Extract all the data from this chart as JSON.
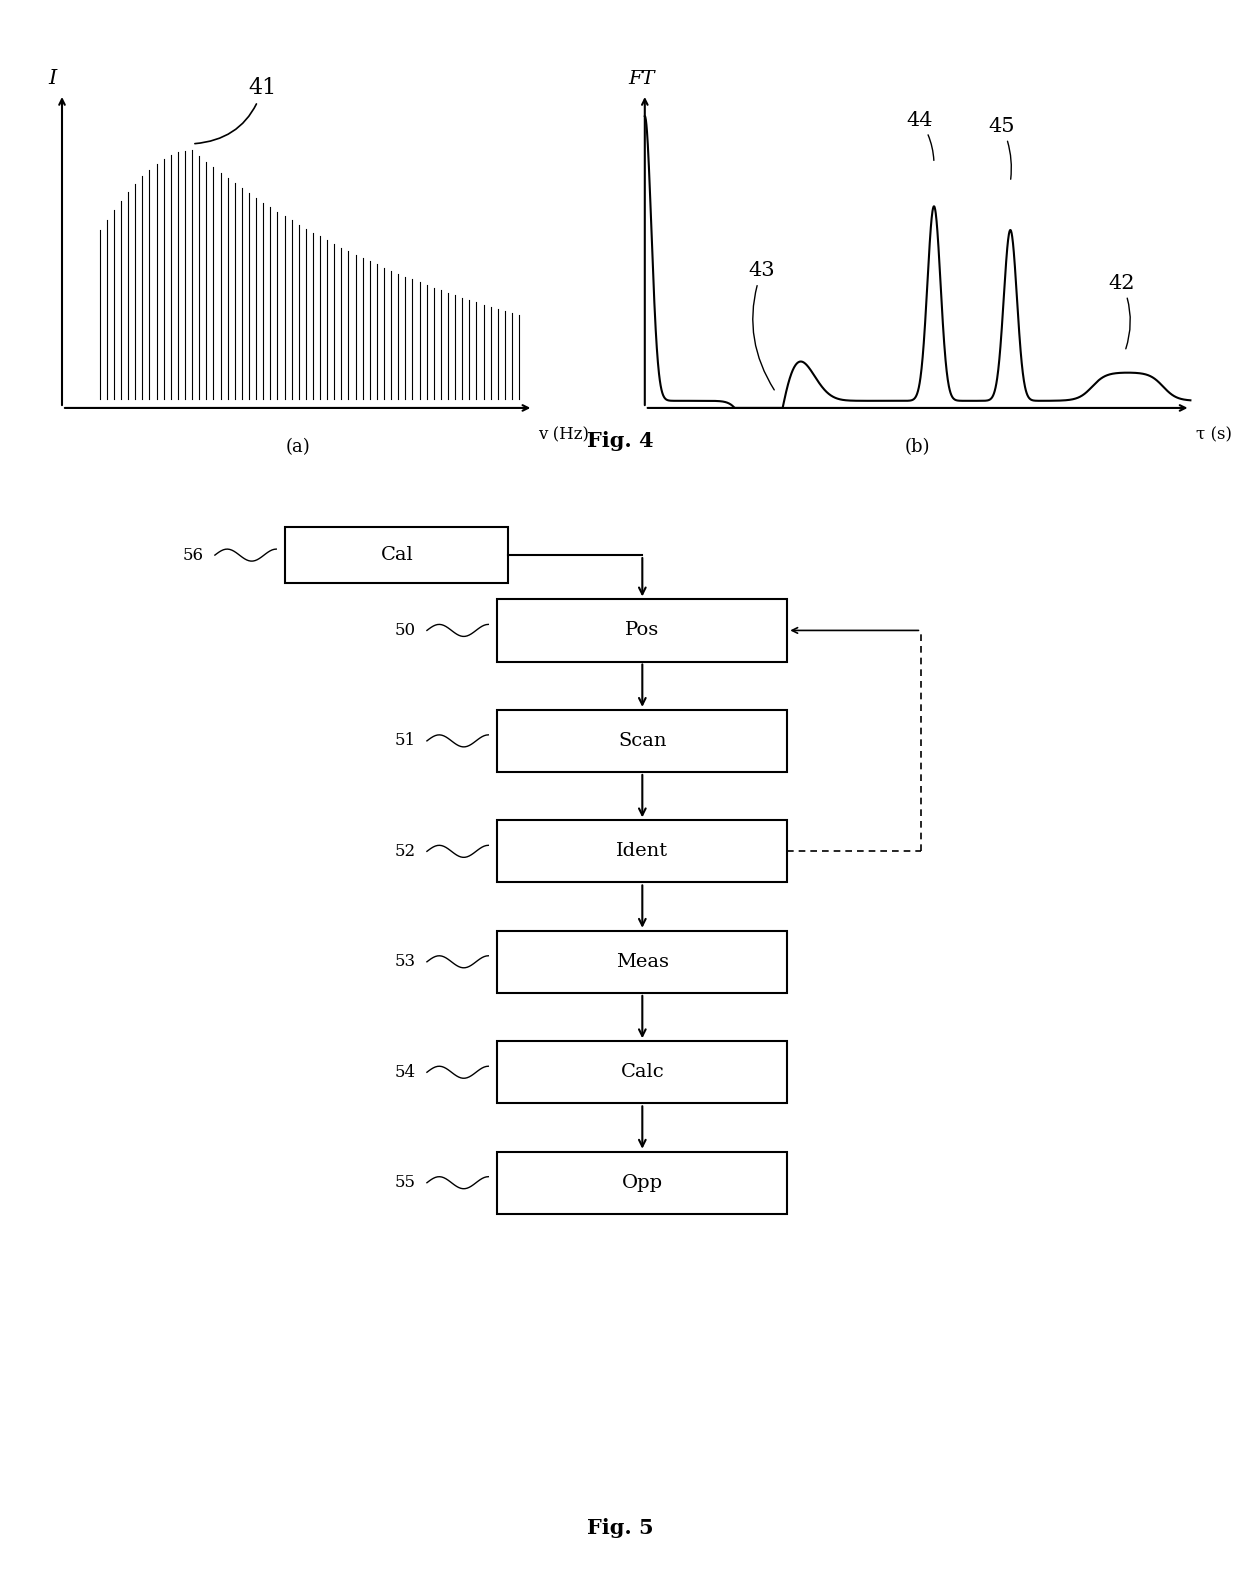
{
  "fig4a_label": "I",
  "fig4a_xlabel": "v (Hz)",
  "fig4a_annotation": "41",
  "fig4b_label": "FT",
  "fig4b_xlabel": "τ (s)",
  "fig4_caption": "Fig. 4",
  "fig5_caption": "Fig. 5",
  "flowchart_boxes": [
    "Cal",
    "Pos",
    "Scan",
    "Ident",
    "Meas",
    "Calc",
    "Opp"
  ],
  "flowchart_labels": [
    "56",
    "50",
    "51",
    "52",
    "53",
    "54",
    "55"
  ],
  "bg_color": "#ffffff"
}
